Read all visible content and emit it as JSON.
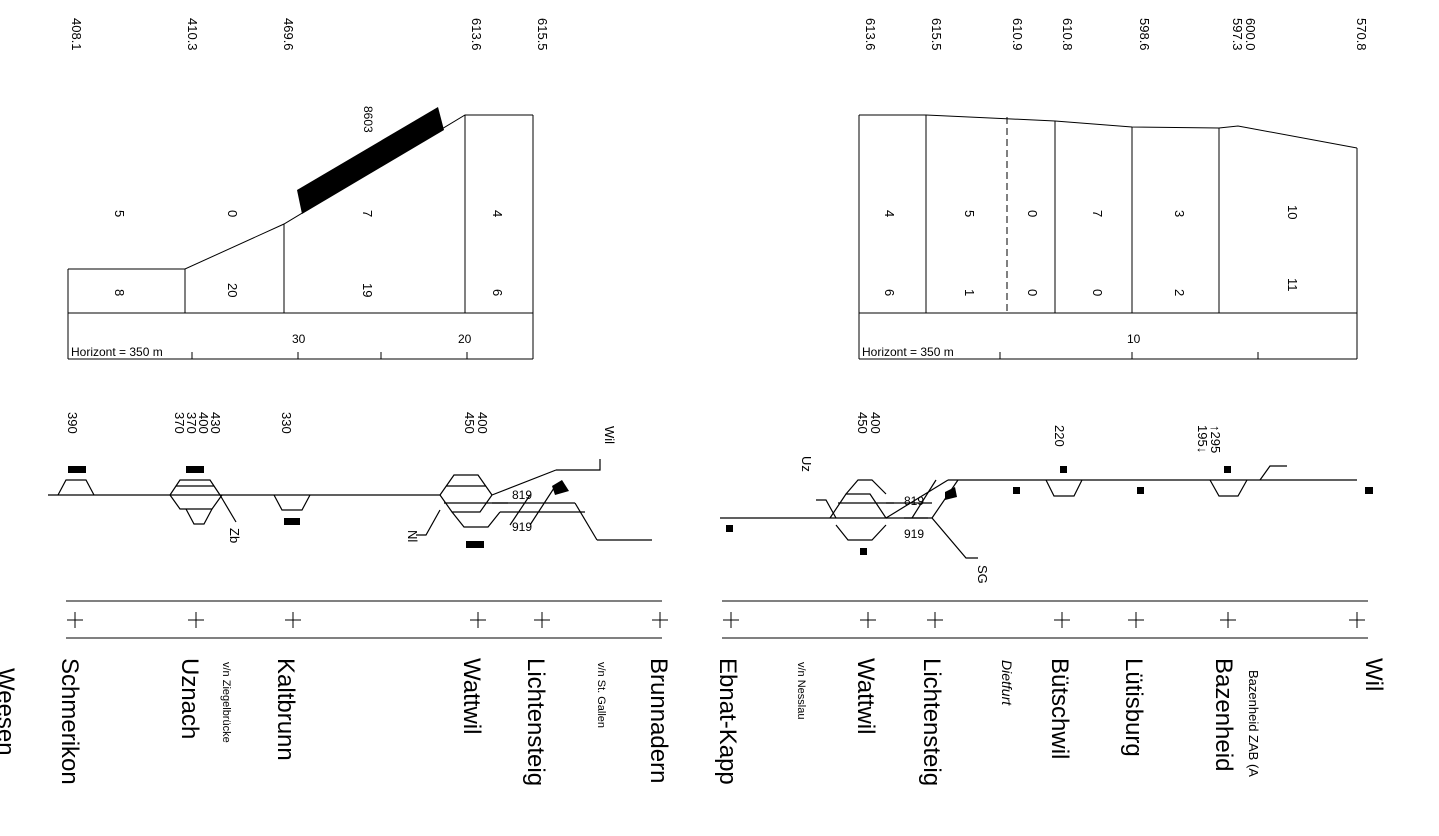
{
  "profile_right": {
    "elevations": [
      "570.8",
      "600.0",
      "597.3",
      "598.6",
      "610.8",
      "610.9",
      "615.5",
      "613.6"
    ],
    "gradients_top": [
      "10",
      "3",
      "7",
      "0",
      "5",
      "4"
    ],
    "gradients_bottom": [
      "11",
      "2",
      "0",
      "0",
      "1",
      "6"
    ],
    "horizon_label": "Horizont = 350 m",
    "km_label": "10"
  },
  "profile_left": {
    "elevations": [
      "615.5",
      "613.6",
      "469.6",
      "410.3",
      "408.1"
    ],
    "gradients_top": [
      "4",
      "7",
      "0",
      "5"
    ],
    "gradients_bottom": [
      "6",
      "19",
      "20",
      "8"
    ],
    "tunnel_label": "8603",
    "horizon_label": "Horizont = 350 m",
    "km_labels": [
      "20",
      "30"
    ]
  },
  "tracks_right": {
    "lengths_bazenheid": [
      "↑295",
      "195↓"
    ],
    "length_butschwil": "220",
    "lengths_wattwil": [
      "400",
      "450"
    ],
    "junction_labels": [
      "819",
      "919"
    ],
    "branch_labels": [
      "Uz",
      "SG"
    ]
  },
  "tracks_left": {
    "lengths_wattwil": [
      "400",
      "450"
    ],
    "length_kaltbrunn": "330",
    "lengths_uznach": [
      "430",
      "400",
      "370",
      "370"
    ],
    "length_schmerikon": "390",
    "junction_labels": [
      "819",
      "919"
    ],
    "branch_labels": [
      "Wil",
      "Nl",
      "Zb"
    ]
  },
  "stations_right": {
    "wil": "Wil",
    "bazenheid": "Bazenheid",
    "bazenheid_zab": "Bazenheid ZAB (A",
    "lutisburg": "Lütisburg",
    "butschwil": "Bütschwil",
    "dietfurt": "Dietfurt",
    "lichtensteig": "Lichtensteig",
    "wattwil": "Wattwil",
    "nesslau_note": "v/n Nesslau",
    "ebnat": "Ebnat-Kapp"
  },
  "stations_left": {
    "brunnadern": "Brunnadern",
    "stgallen_note": "v/n St. Gallen",
    "lichtensteig": "Lichtensteig",
    "wattwil": "Wattwil",
    "kaltbrunn": "Kaltbrunn",
    "uznach": "Uznach",
    "ziegel_note": "v/n Ziegelbrücke",
    "schmerikon": "Schmerikon",
    "weesen": "Weesen"
  }
}
